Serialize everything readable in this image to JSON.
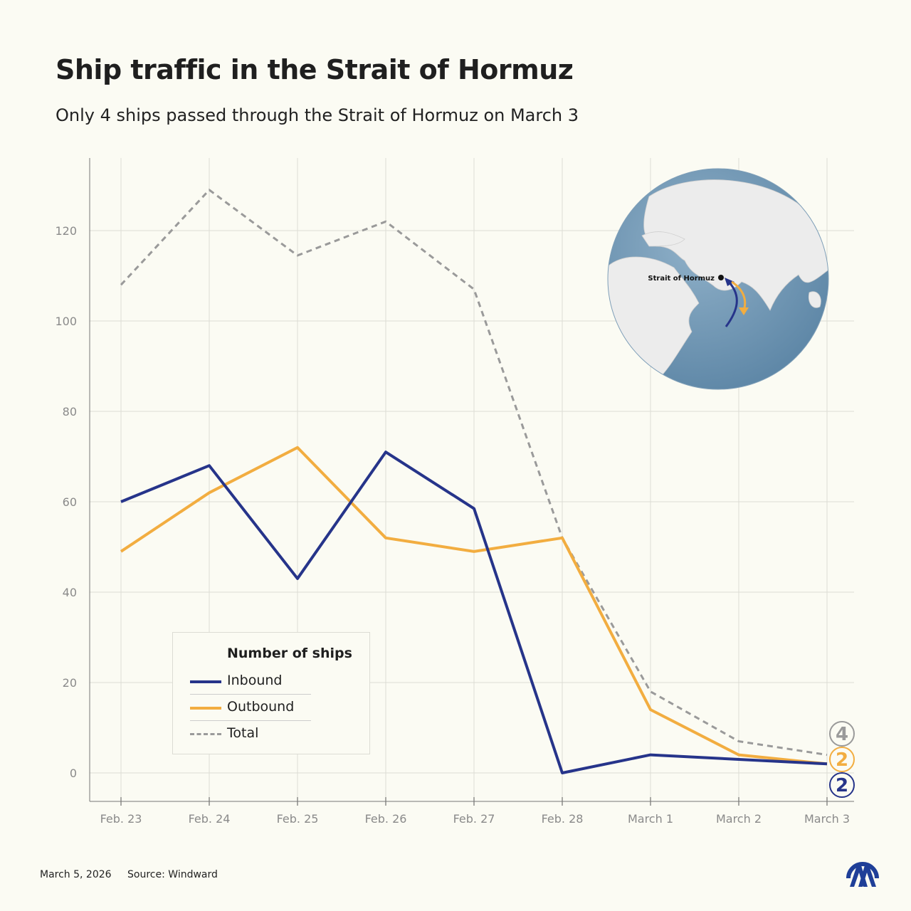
{
  "title": "Ship traffic in the Strait of Hormuz",
  "subtitle": "Only 4 ships passed through the Strait of Hormuz on March 3",
  "legend": {
    "title": "Number of ships",
    "items": [
      "Inbound",
      "Outbound",
      "Total"
    ]
  },
  "globe": {
    "label": "Strait of Hormuz"
  },
  "end_labels": {
    "total": "4",
    "outbound": "2",
    "inbound": "2"
  },
  "footer": {
    "date": "March 5, 2026",
    "source": "Source: Windward"
  },
  "logo": "AA",
  "colors": {
    "inbound": "#26348a",
    "outbound": "#f2ad40",
    "total": "#9a9a9a",
    "background": "#fbfbf3"
  },
  "chart_data": {
    "type": "line",
    "title": "Ship traffic in the Strait of Hormuz",
    "categories": [
      "Feb. 23",
      "Feb. 24",
      "Feb. 25",
      "Feb. 26",
      "Feb. 27",
      "Feb. 28",
      "March 1",
      "March 2",
      "March 3"
    ],
    "yticks": [
      0,
      20,
      40,
      60,
      80,
      100,
      120
    ],
    "ylim": [
      -6,
      136
    ],
    "grid": true,
    "legend_position": "bottom-left",
    "series": [
      {
        "name": "Inbound",
        "color": "#26348a",
        "style": "solid",
        "values": [
          60,
          68,
          43,
          71,
          58.5,
          0,
          4,
          3,
          2
        ]
      },
      {
        "name": "Outbound",
        "color": "#f2ad40",
        "style": "solid",
        "values": [
          49,
          62,
          72,
          52,
          49,
          52,
          14,
          4,
          2
        ]
      },
      {
        "name": "Total",
        "color": "#9a9a9a",
        "style": "dashed",
        "values": [
          108,
          129,
          114.5,
          122,
          107,
          52,
          18,
          7,
          4
        ]
      }
    ]
  }
}
